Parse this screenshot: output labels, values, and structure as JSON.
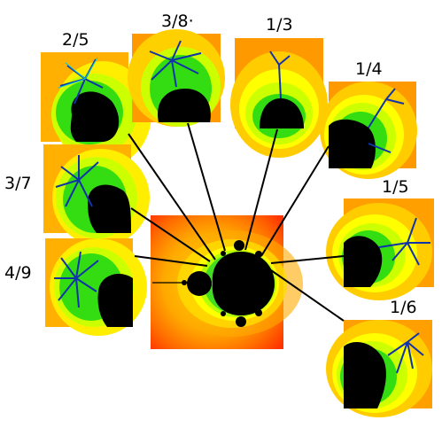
{
  "labels": {
    "r2_5": "2/5",
    "r3_8": "3/8·",
    "r1_3": "1/3",
    "r1_4": "1/4",
    "r3_7": "3/7",
    "r1_5": "1/5",
    "r4_9": "4/9",
    "r1_6": "1/6"
  },
  "colors": {
    "set": "#000000",
    "red": "#ff3300",
    "orange_dark": "#ff6a00",
    "orange": "#ff9900",
    "amber": "#ffc000",
    "yellow": "#ffff00",
    "lime": "#ccff00",
    "green": "#33dd11",
    "cyan": "#00cccc",
    "blue": "#1133aa",
    "line": "#000000"
  }
}
